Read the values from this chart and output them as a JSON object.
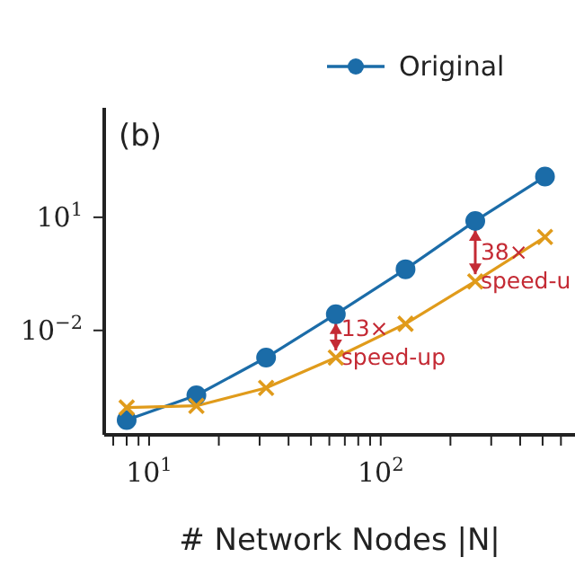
{
  "chart_data": {
    "type": "line",
    "xlabel": "# Network Nodes |N|",
    "log": "xy",
    "grid": false,
    "legend": "top right",
    "x": [
      8,
      16,
      32,
      64,
      128,
      256,
      512
    ],
    "series": [
      {
        "name": "Original",
        "color": "#1b6ca8",
        "marker": "circle",
        "values": [
          4.2e-05,
          0.00019,
          0.0019,
          0.027,
          0.42,
          8,
          120
        ]
      },
      {
        "color": "#e09b1b",
        "marker": "cross",
        "values": [
          9e-05,
          0.0001,
          0.0003,
          0.0019,
          0.015,
          0.2,
          3
        ]
      }
    ],
    "xlim": [
      6.4,
      690
    ],
    "ylim": [
      1.7e-05,
      8000
    ],
    "xticks": [
      {
        "value": 7,
        "label": null
      },
      {
        "value": 8,
        "label": null
      },
      {
        "value": 9,
        "label": null
      },
      {
        "value": 10,
        "label": "10$^{1}$"
      },
      {
        "value": 20,
        "label": null
      },
      {
        "value": 30,
        "label": null
      },
      {
        "value": 40,
        "label": null
      },
      {
        "value": 50,
        "label": null
      },
      {
        "value": 60,
        "label": null
      },
      {
        "value": 70,
        "label": null
      },
      {
        "value": 80,
        "label": null
      },
      {
        "value": 90,
        "label": null
      },
      {
        "value": 100,
        "label": "10$^{2}$"
      },
      {
        "value": 200,
        "label": null
      },
      {
        "value": 300,
        "label": null
      },
      {
        "value": 400,
        "label": null
      },
      {
        "value": 500,
        "label": null
      },
      {
        "value": 600,
        "label": null
      }
    ],
    "yticks": [
      {
        "value": 0.01,
        "label": "10$^{−2}$"
      },
      {
        "value": 10,
        "label": "10$^{1}$"
      }
    ],
    "annotations": [
      "(b)",
      {
        "text": "13× speed-up",
        "x": 64,
        "y": 0.0019
      },
      {
        "text": "38× speed-u",
        "x": 256,
        "y": 0.2
      }
    ]
  }
}
